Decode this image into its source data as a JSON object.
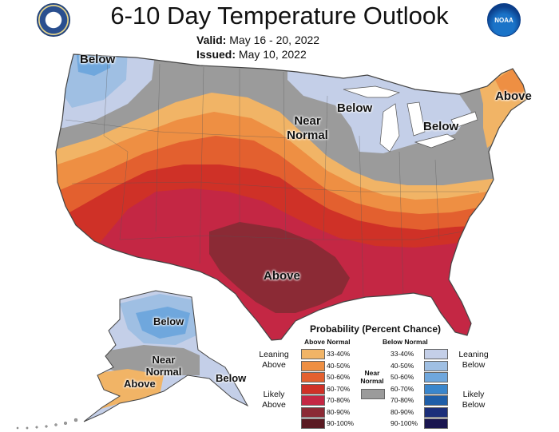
{
  "header": {
    "title": "6-10 Day Temperature Outlook",
    "valid_label": "Valid:",
    "valid_value": "May 16 - 20, 2022",
    "issued_label": "Issued:",
    "issued_value": "May 10, 2022"
  },
  "logos": {
    "left": "commerce-seal-icon",
    "right_text": "NOAA"
  },
  "map_labels": {
    "nw_below": "Below",
    "gl_below": "Below",
    "ne_below": "Below",
    "ne_above": "Above",
    "near_normal_1": "Near",
    "near_normal_2": "Normal",
    "south_above": "Above",
    "ak_below": "Below",
    "ak_near_1": "Near",
    "ak_near_2": "Normal",
    "ak_above": "Above",
    "ak_se_below": "Below"
  },
  "legend": {
    "title": "Probability (Percent Chance)",
    "above_header": "Above Normal",
    "below_header": "Below Normal",
    "near_1": "Near",
    "near_2": "Normal",
    "leaning_above_1": "Leaning",
    "leaning_above_2": "Above",
    "likely_above_1": "Likely",
    "likely_above_2": "Above",
    "leaning_below_1": "Leaning",
    "leaning_below_2": "Below",
    "likely_below_1": "Likely",
    "likely_below_2": "Below",
    "above": [
      {
        "label": "33-40%",
        "color": "#f1b466"
      },
      {
        "label": "40-50%",
        "color": "#ee8f43"
      },
      {
        "label": "50-60%",
        "color": "#e3602f"
      },
      {
        "label": "60-70%",
        "color": "#cf3127"
      },
      {
        "label": "70-80%",
        "color": "#c42744"
      },
      {
        "label": "80-90%",
        "color": "#8b2a35"
      },
      {
        "label": "90-100%",
        "color": "#5a1a22"
      }
    ],
    "below": [
      {
        "label": "33-40%",
        "color": "#c4cfe8"
      },
      {
        "label": "40-50%",
        "color": "#9fbfe3"
      },
      {
        "label": "50-60%",
        "color": "#6fa7dd"
      },
      {
        "label": "60-70%",
        "color": "#3a86cc"
      },
      {
        "label": "70-80%",
        "color": "#1f5ea8"
      },
      {
        "label": "80-90%",
        "color": "#1c2f7a"
      },
      {
        "label": "90-100%",
        "color": "#1a1650"
      }
    ],
    "near_color": "#9b9b9b"
  }
}
